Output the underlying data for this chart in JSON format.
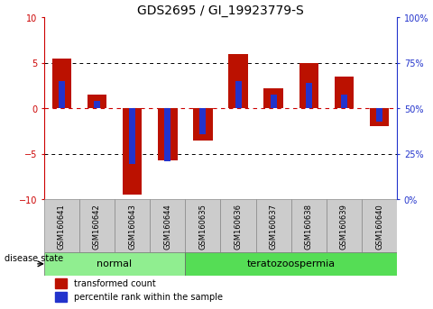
{
  "title": "GDS2695 / GI_19923779-S",
  "samples": [
    "GSM160641",
    "GSM160642",
    "GSM160643",
    "GSM160644",
    "GSM160635",
    "GSM160636",
    "GSM160637",
    "GSM160638",
    "GSM160639",
    "GSM160640"
  ],
  "red_values": [
    5.5,
    1.5,
    -9.5,
    -5.7,
    -3.5,
    6.0,
    2.2,
    5.0,
    3.5,
    -2.0
  ],
  "blue_values": [
    3.0,
    0.8,
    -6.1,
    -5.8,
    -2.8,
    3.0,
    1.5,
    2.8,
    1.5,
    -1.5
  ],
  "ylim": [
    -10,
    10
  ],
  "yticks_left": [
    -10,
    -5,
    0,
    5,
    10
  ],
  "right_tick_labels": [
    "0%",
    "25%",
    "50%",
    "75%",
    "100%"
  ],
  "groups": [
    {
      "label": "normal",
      "start": 0,
      "end": 4,
      "color": "#90EE90"
    },
    {
      "label": "teratozoospermia",
      "start": 4,
      "end": 10,
      "color": "#55DD55"
    }
  ],
  "disease_state_label": "disease state",
  "bar_color_red": "#BB1100",
  "bar_color_blue": "#2233CC",
  "bar_width": 0.55,
  "blue_bar_width": 0.18,
  "grid_color": "#000000",
  "zero_line_color": "#CC0000",
  "bg_color": "#FFFFFF",
  "plot_bg_color": "#FFFFFF",
  "tick_box_color": "#CCCCCC",
  "legend_red": "transformed count",
  "legend_blue": "percentile rank within the sample",
  "title_fontsize": 10,
  "axis_fontsize": 7,
  "sample_fontsize": 6,
  "group_fontsize": 8
}
